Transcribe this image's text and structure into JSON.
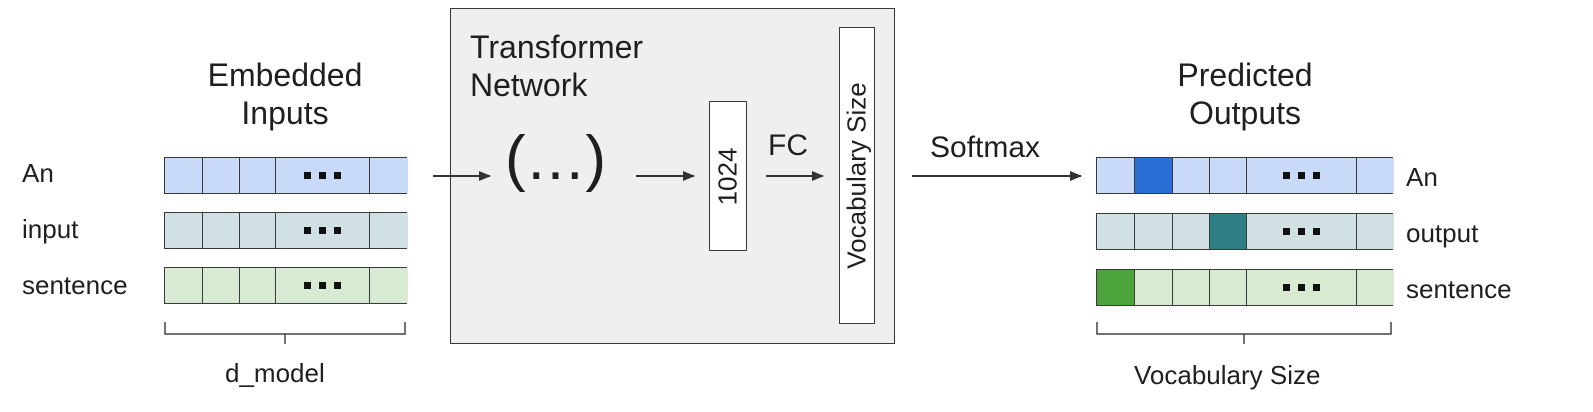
{
  "inputs": {
    "title": "Embedded\nInputs",
    "rows": [
      {
        "label": "An",
        "fill": "#c9daf8"
      },
      {
        "label": "input",
        "fill": "#d0e0e3"
      },
      {
        "label": "sentence",
        "fill": "#d9ead3"
      }
    ],
    "brace_label": "d_model"
  },
  "network": {
    "title": "Transformer\nNetwork",
    "ellipsis": "(...)",
    "hidden_label": "1024",
    "fc_label": "FC",
    "vocab_label": "Vocabulary Size"
  },
  "softmax_label": "Softmax",
  "outputs": {
    "title": "Predicted\nOutputs",
    "rows": [
      {
        "label": "An",
        "fill": "#c9daf8",
        "highlight_index": 1,
        "highlight_color": "#2a6fd6"
      },
      {
        "label": "output",
        "fill": "#d0e0e3",
        "highlight_index": 3,
        "highlight_color": "#2f7f86"
      },
      {
        "label": "sentence",
        "fill": "#d9ead3",
        "highlight_index": 0,
        "highlight_color": "#4ea43c"
      }
    ],
    "brace_label": "Vocabulary Size"
  }
}
